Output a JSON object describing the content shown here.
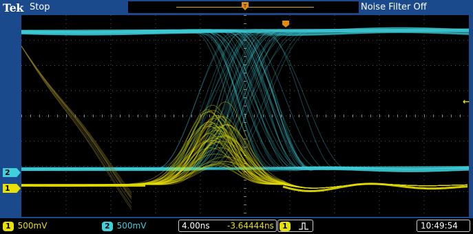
{
  "status": {
    "brand": "Tek",
    "run_state": "Stop",
    "filter": "Noise Filter Off"
  },
  "markers": {
    "ch2": "2",
    "ch1": "1",
    "trigger_level_glyph": "←"
  },
  "bottom": {
    "ch1_tag": "1",
    "ch1_scale": "500mV",
    "ch2_tag": "2",
    "ch2_scale": "500mV",
    "timebase": "4.00ns",
    "trigger_delay": "-3.64444ns",
    "trigger_source": "1",
    "trigger_slope_icon": "rising-edge-icon",
    "clock": "10:49:54"
  },
  "colors": {
    "ch1": "#e8e000",
    "ch2": "#3ed0dc",
    "frame": "#1a4a8c",
    "graticule": "#5a5a5a"
  }
}
